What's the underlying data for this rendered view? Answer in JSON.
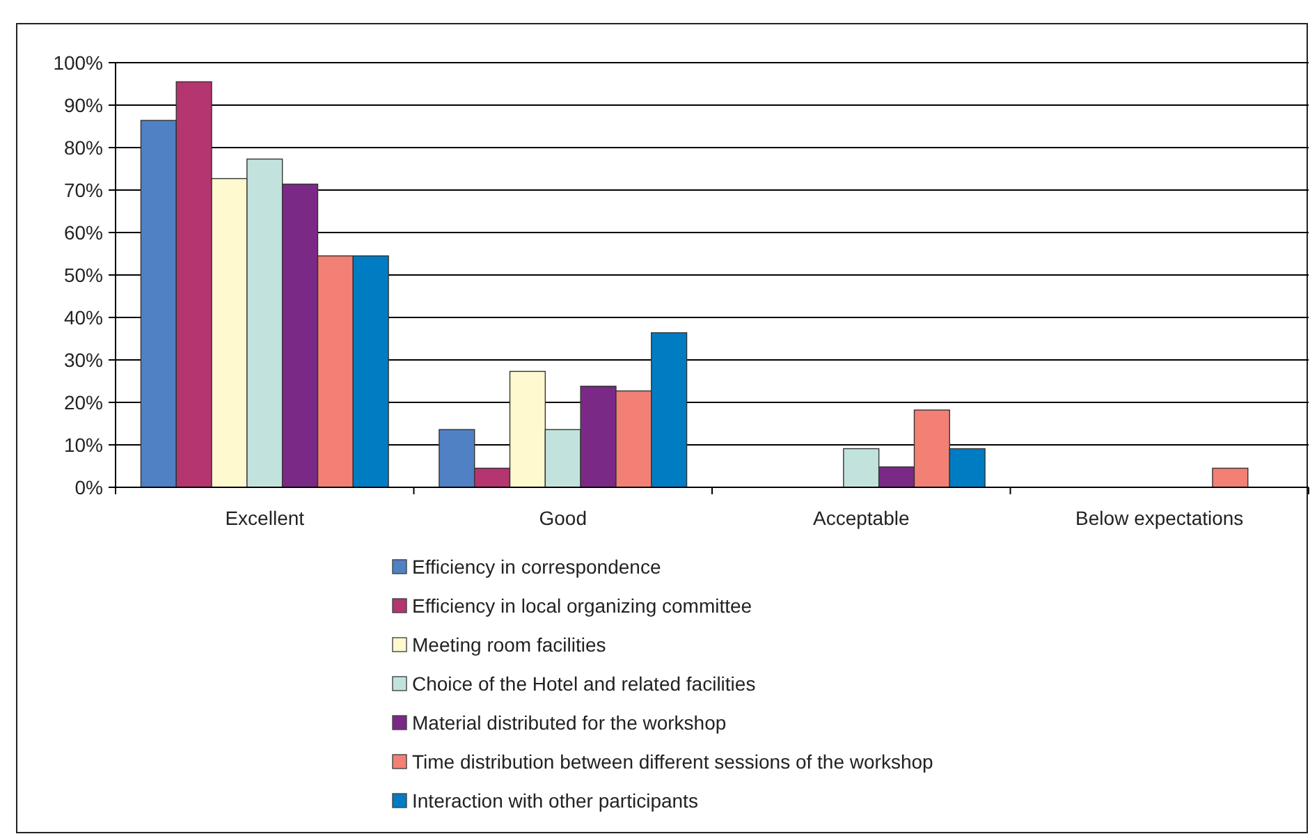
{
  "chart_data": {
    "type": "bar",
    "categories": [
      "Excellent",
      "Good",
      "Acceptable",
      "Below expectations"
    ],
    "series": [
      {
        "name": "Efficiency in correspondence",
        "color": "#4f81c4",
        "values": [
          86.4,
          13.6,
          0,
          0
        ]
      },
      {
        "name": "Efficiency in local organizing committee",
        "color": "#b53570",
        "values": [
          95.5,
          4.5,
          0,
          0
        ]
      },
      {
        "name": "Meeting room facilities",
        "color": "#fef9cf",
        "values": [
          72.7,
          27.3,
          0,
          0
        ]
      },
      {
        "name": "Choice of the Hotel and related facilities",
        "color": "#c2e3dd",
        "values": [
          77.3,
          13.6,
          9.1,
          0
        ]
      },
      {
        "name": "Material distributed for the workshop",
        "color": "#7b2986",
        "values": [
          71.4,
          23.8,
          4.8,
          0
        ]
      },
      {
        "name": "Time distribution between different sessions of the workshop",
        "color": "#f28074",
        "values": [
          54.5,
          22.7,
          18.2,
          4.5
        ]
      },
      {
        "name": "Interaction with other participants",
        "color": "#007cc3",
        "values": [
          54.5,
          36.4,
          9.1,
          0
        ]
      }
    ],
    "ylim": [
      0,
      100
    ],
    "yticks": [
      {
        "value": 0,
        "label": "0%"
      },
      {
        "value": 10,
        "label": "10%"
      },
      {
        "value": 20,
        "label": "20%"
      },
      {
        "value": 30,
        "label": "30%"
      },
      {
        "value": 40,
        "label": "40%"
      },
      {
        "value": 50,
        "label": "50%"
      },
      {
        "value": 60,
        "label": "60%"
      },
      {
        "value": 70,
        "label": "70%"
      },
      {
        "value": 80,
        "label": "80%"
      },
      {
        "value": 90,
        "label": "90%"
      },
      {
        "value": 100,
        "label": "100%"
      }
    ],
    "grid": "y",
    "legend": "bottom"
  }
}
